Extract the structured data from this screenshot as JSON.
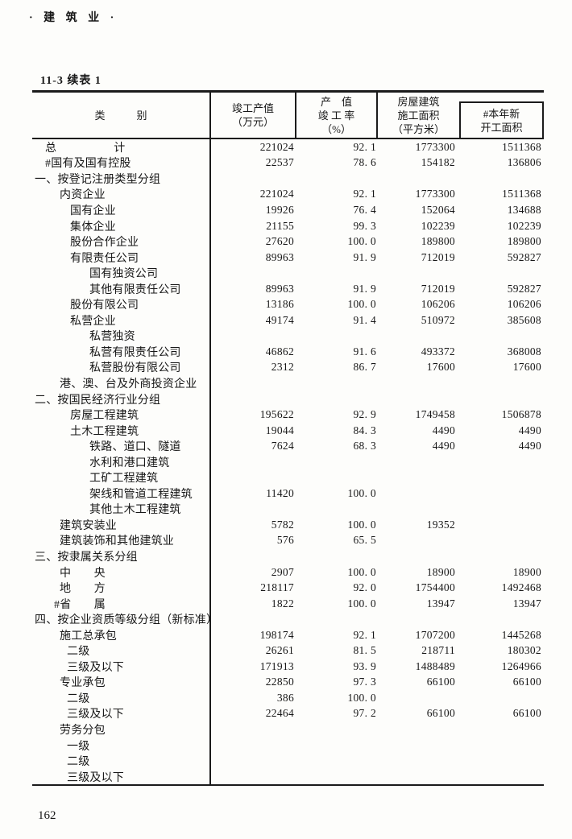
{
  "page": {
    "running_header": "· 建 筑 业 ·",
    "table_label": "11-3  续表 1",
    "page_number": "162"
  },
  "table": {
    "header": {
      "category": "类　　　别",
      "completed_output": "竣工产值\n（万元）",
      "completion_rate": "产　值\n竣 工 率\n（%）",
      "floor_space": "房屋建筑\n施工面积\n（平方米）",
      "new_started": "#本年新\n开工面积"
    },
    "rows": [
      {
        "label": "总　　　　　计",
        "indent": 1,
        "v1": "221024",
        "v2": "92. 1",
        "v3": "1773300",
        "v4": "1511368"
      },
      {
        "label": "#国有及国有控股",
        "indent": 1,
        "v1": "22537",
        "v2": "78. 6",
        "v3": "154182",
        "v4": "136806"
      },
      {
        "label": "一、按登记注册类型分组",
        "indent": 0,
        "v1": "",
        "v2": "",
        "v3": "",
        "v4": ""
      },
      {
        "label": "内资企业",
        "indent": 2,
        "v1": "221024",
        "v2": "92. 1",
        "v3": "1773300",
        "v4": "1511368"
      },
      {
        "label": "国有企业",
        "indent": 4,
        "v1": "19926",
        "v2": "76. 4",
        "v3": "152064",
        "v4": "134688"
      },
      {
        "label": "集体企业",
        "indent": 4,
        "v1": "21155",
        "v2": "99. 3",
        "v3": "102239",
        "v4": "102239"
      },
      {
        "label": "股份合作企业",
        "indent": 4,
        "v1": "27620",
        "v2": "100. 0",
        "v3": "189800",
        "v4": "189800"
      },
      {
        "label": "有限责任公司",
        "indent": 4,
        "v1": "89963",
        "v2": "91. 9",
        "v3": "712019",
        "v4": "592827"
      },
      {
        "label": "国有独资公司",
        "indent": 5,
        "v1": "",
        "v2": "",
        "v3": "",
        "v4": ""
      },
      {
        "label": "其他有限责任公司",
        "indent": 5,
        "v1": "89963",
        "v2": "91. 9",
        "v3": "712019",
        "v4": "592827"
      },
      {
        "label": "股份有限公司",
        "indent": 4,
        "v1": "13186",
        "v2": "100. 0",
        "v3": "106206",
        "v4": "106206"
      },
      {
        "label": "私营企业",
        "indent": 4,
        "v1": "49174",
        "v2": "91. 4",
        "v3": "510972",
        "v4": "385608"
      },
      {
        "label": "私营独资",
        "indent": 5,
        "v1": "",
        "v2": "",
        "v3": "",
        "v4": ""
      },
      {
        "label": "私营有限责任公司",
        "indent": 5,
        "v1": "46862",
        "v2": "91. 6",
        "v3": "493372",
        "v4": "368008"
      },
      {
        "label": "私营股份有限公司",
        "indent": 5,
        "v1": "2312",
        "v2": "86. 7",
        "v3": "17600",
        "v4": "17600"
      },
      {
        "label": "港、澳、台及外商投资企业",
        "indent": 2,
        "v1": "",
        "v2": "",
        "v3": "",
        "v4": ""
      },
      {
        "label": "二、按国民经济行业分组",
        "indent": 0,
        "v1": "",
        "v2": "",
        "v3": "",
        "v4": ""
      },
      {
        "label": "房屋工程建筑",
        "indent": 4,
        "v1": "195622",
        "v2": "92. 9",
        "v3": "1749458",
        "v4": "1506878"
      },
      {
        "label": "土木工程建筑",
        "indent": 4,
        "v1": "19044",
        "v2": "84. 3",
        "v3": "4490",
        "v4": "4490"
      },
      {
        "label": "铁路、道口、隧道",
        "indent": 5,
        "v1": "7624",
        "v2": "68. 3",
        "v3": "4490",
        "v4": "4490"
      },
      {
        "label": "水利和港口建筑",
        "indent": 5,
        "v1": "",
        "v2": "",
        "v3": "",
        "v4": ""
      },
      {
        "label": "工矿工程建筑",
        "indent": 5,
        "v1": "",
        "v2": "",
        "v3": "",
        "v4": ""
      },
      {
        "label": "架线和管道工程建筑",
        "indent": 5,
        "v1": "11420",
        "v2": "100. 0",
        "v3": "",
        "v4": ""
      },
      {
        "label": "其他土木工程建筑",
        "indent": 5,
        "v1": "",
        "v2": "",
        "v3": "",
        "v4": ""
      },
      {
        "label": "建筑安装业",
        "indent": 2,
        "v1": "5782",
        "v2": "100. 0",
        "v3": "19352",
        "v4": ""
      },
      {
        "label": "建筑装饰和其他建筑业",
        "indent": 2,
        "v1": "576",
        "v2": "65. 5",
        "v3": "",
        "v4": ""
      },
      {
        "label": "三、按隶属关系分组",
        "indent": 0,
        "v1": "",
        "v2": "",
        "v3": "",
        "v4": ""
      },
      {
        "label": "中　　央",
        "indent": 2,
        "v1": "2907",
        "v2": "100. 0",
        "v3": "18900",
        "v4": "18900"
      },
      {
        "label": "地　　方",
        "indent": 2,
        "v1": "218117",
        "v2": "92. 0",
        "v3": "1754400",
        "v4": "1492468"
      },
      {
        "label": "#省　　属",
        "indent": 6,
        "v1": "1822",
        "v2": "100. 0",
        "v3": "13947",
        "v4": "13947"
      },
      {
        "label": "四、按企业资质等级分组（新标准）",
        "indent": 0,
        "v1": "",
        "v2": "",
        "v3": "",
        "v4": ""
      },
      {
        "label": "施工总承包",
        "indent": 2,
        "v1": "198174",
        "v2": "92. 1",
        "v3": "1707200",
        "v4": "1445268"
      },
      {
        "label": "二级",
        "indent": 3,
        "v1": "26261",
        "v2": "81. 5",
        "v3": "218711",
        "v4": "180302"
      },
      {
        "label": "三级及以下",
        "indent": 3,
        "v1": "171913",
        "v2": "93. 9",
        "v3": "1488489",
        "v4": "1264966"
      },
      {
        "label": "专业承包",
        "indent": 2,
        "v1": "22850",
        "v2": "97. 3",
        "v3": "66100",
        "v4": "66100"
      },
      {
        "label": "二级",
        "indent": 3,
        "v1": "386",
        "v2": "100. 0",
        "v3": "",
        "v4": ""
      },
      {
        "label": "三级及以下",
        "indent": 3,
        "v1": "22464",
        "v2": "97. 2",
        "v3": "66100",
        "v4": "66100"
      },
      {
        "label": "劳务分包",
        "indent": 2,
        "v1": "",
        "v2": "",
        "v3": "",
        "v4": ""
      },
      {
        "label": "一级",
        "indent": 3,
        "v1": "",
        "v2": "",
        "v3": "",
        "v4": ""
      },
      {
        "label": "二级",
        "indent": 3,
        "v1": "",
        "v2": "",
        "v3": "",
        "v4": ""
      },
      {
        "label": "三级及以下",
        "indent": 3,
        "v1": "",
        "v2": "",
        "v3": "",
        "v4": ""
      }
    ]
  }
}
